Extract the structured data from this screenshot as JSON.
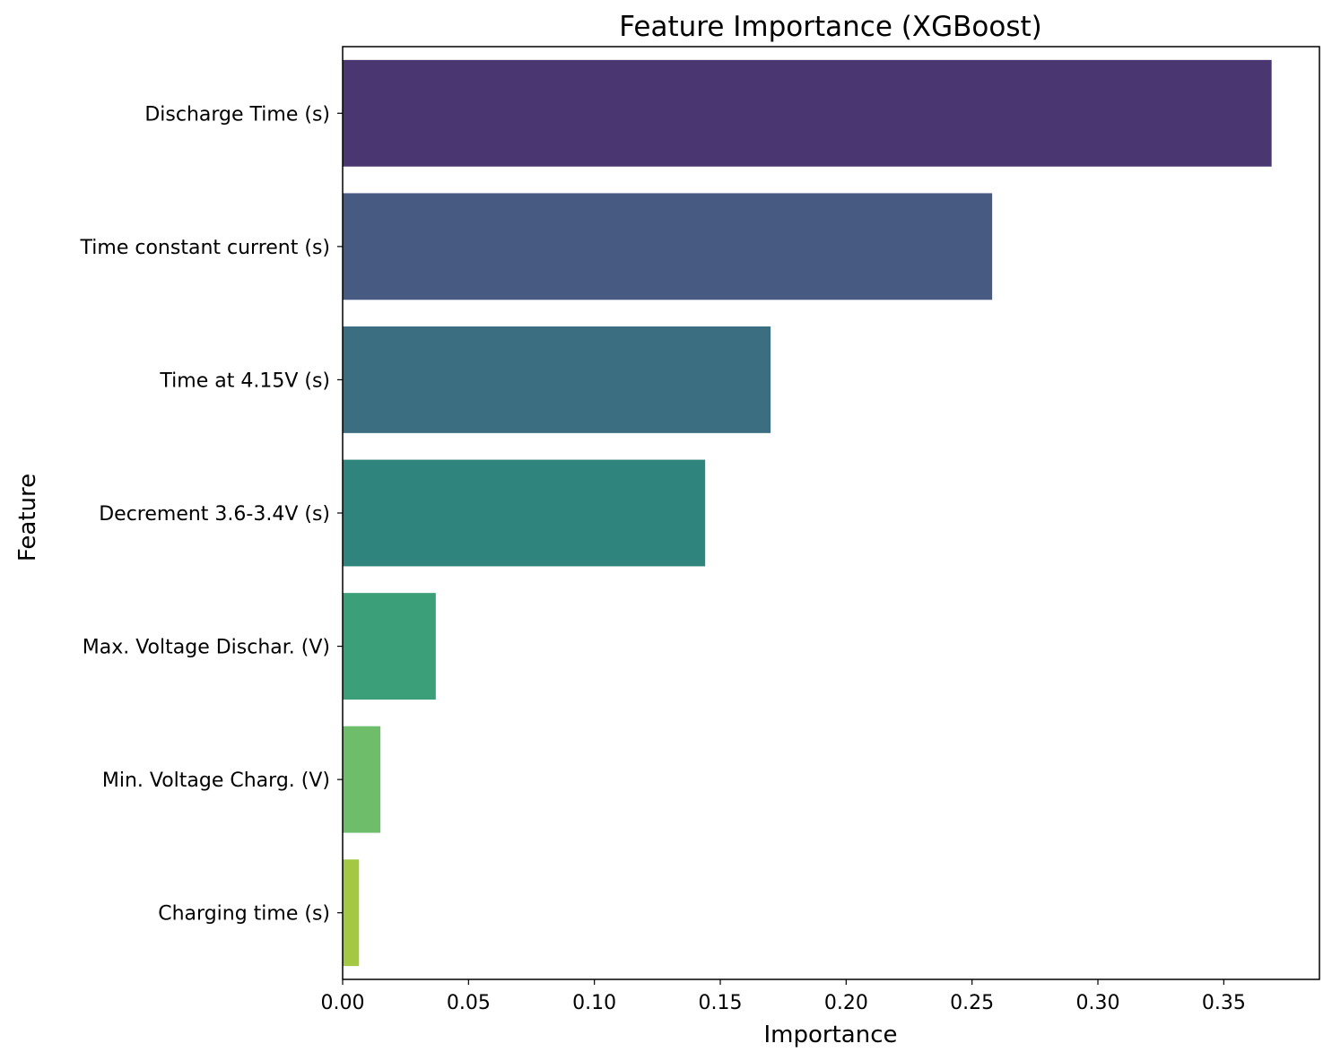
{
  "chart_data": {
    "type": "bar",
    "orientation": "horizontal",
    "title": "Feature Importance (XGBoost)",
    "xlabel": "Importance",
    "ylabel": "Feature",
    "xlim": [
      0,
      0.388
    ],
    "xticks": [
      0.0,
      0.05,
      0.1,
      0.15,
      0.2,
      0.25,
      0.3,
      0.35
    ],
    "xtick_labels": [
      "0.00",
      "0.05",
      "0.10",
      "0.15",
      "0.20",
      "0.25",
      "0.30",
      "0.35"
    ],
    "grid": false,
    "legend": "none",
    "categories": [
      "Discharge Time (s)",
      "Time constant current (s)",
      "Time at 4.15V (s)",
      "Decrement 3.6-3.4V (s)",
      "Max. Voltage Dischar. (V)",
      "Min. Voltage Charg. (V)",
      "Charging time (s)"
    ],
    "values": [
      0.369,
      0.258,
      0.17,
      0.144,
      0.037,
      0.015,
      0.0065
    ],
    "colors": [
      "#4a3670",
      "#465a82",
      "#3b6e80",
      "#2f857d",
      "#3ba07a",
      "#6dbd6b",
      "#a3c844"
    ]
  }
}
